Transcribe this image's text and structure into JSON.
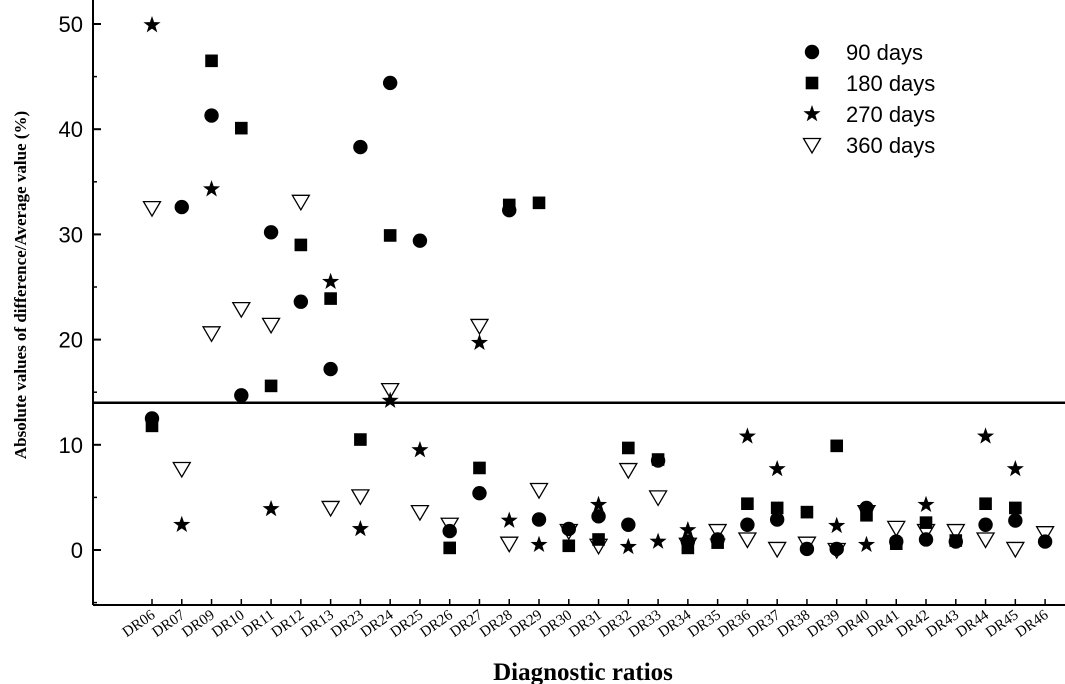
{
  "chart_data": {
    "type": "scatter",
    "title": "",
    "xlabel": "Diagnostic ratios",
    "ylabel": "Absolute values of difference/Average value (%)",
    "ylim": [
      -5,
      50
    ],
    "yticks": [
      0,
      10,
      20,
      30,
      40,
      50
    ],
    "grid": false,
    "legend_position": "top-right",
    "categories": [
      "DR06",
      "DR07",
      "DR09",
      "DR10",
      "DR11",
      "DR12",
      "DR13",
      "DR23",
      "DR24",
      "DR25",
      "DR26",
      "DR27",
      "DR28",
      "DR29",
      "DR30",
      "DR31",
      "DR32",
      "DR33",
      "DR34",
      "DR35",
      "DR36",
      "DR37",
      "DR38",
      "DR39",
      "DR40",
      "DR41",
      "DR42",
      "DR43",
      "DR44",
      "DR45",
      "DR46"
    ],
    "threshold_line": 14,
    "series": [
      {
        "name": "90  days",
        "marker": "circle",
        "color": "#000000",
        "values": [
          12.5,
          32.6,
          41.3,
          14.7,
          30.2,
          23.6,
          17.2,
          38.3,
          44.4,
          29.4,
          1.8,
          5.4,
          32.3,
          2.9,
          2.0,
          3.2,
          2.4,
          8.5,
          0.8,
          1.0,
          2.4,
          2.9,
          0.1,
          0.1,
          4.0,
          0.8,
          1.0,
          0.8,
          2.4,
          2.8,
          0.8
        ]
      },
      {
        "name": "180 days",
        "marker": "square",
        "color": "#000000",
        "values": [
          11.8,
          null,
          46.5,
          40.1,
          15.6,
          29.0,
          23.9,
          10.5,
          29.9,
          null,
          0.2,
          7.8,
          32.8,
          33.0,
          0.4,
          1.0,
          9.7,
          8.6,
          0.2,
          0.7,
          4.4,
          4.0,
          3.6,
          9.9,
          3.3,
          0.6,
          2.6,
          0.9,
          4.4,
          4.0,
          null
        ]
      },
      {
        "name": "270 days",
        "marker": "star",
        "color": "#000000",
        "values": [
          49.9,
          2.4,
          34.3,
          null,
          3.9,
          null,
          25.5,
          2.0,
          14.2,
          9.5,
          null,
          19.7,
          2.8,
          0.5,
          null,
          4.3,
          0.3,
          0.8,
          1.9,
          0.8,
          10.8,
          7.7,
          null,
          2.3,
          0.5,
          null,
          4.3,
          null,
          10.8,
          7.7,
          null
        ]
      },
      {
        "name": "360 days",
        "marker": "triangle-down-open",
        "color": "#000000",
        "values": [
          32.5,
          7.7,
          20.6,
          22.9,
          21.4,
          33.1,
          4.0,
          5.1,
          15.2,
          3.6,
          2.4,
          21.3,
          0.6,
          5.7,
          1.8,
          0.4,
          7.6,
          5.0,
          0.5,
          1.8,
          1.0,
          0.1,
          0.6,
          0.0,
          3.6,
          2.1,
          1.8,
          1.8,
          1.0,
          0.1,
          1.6
        ]
      }
    ]
  }
}
